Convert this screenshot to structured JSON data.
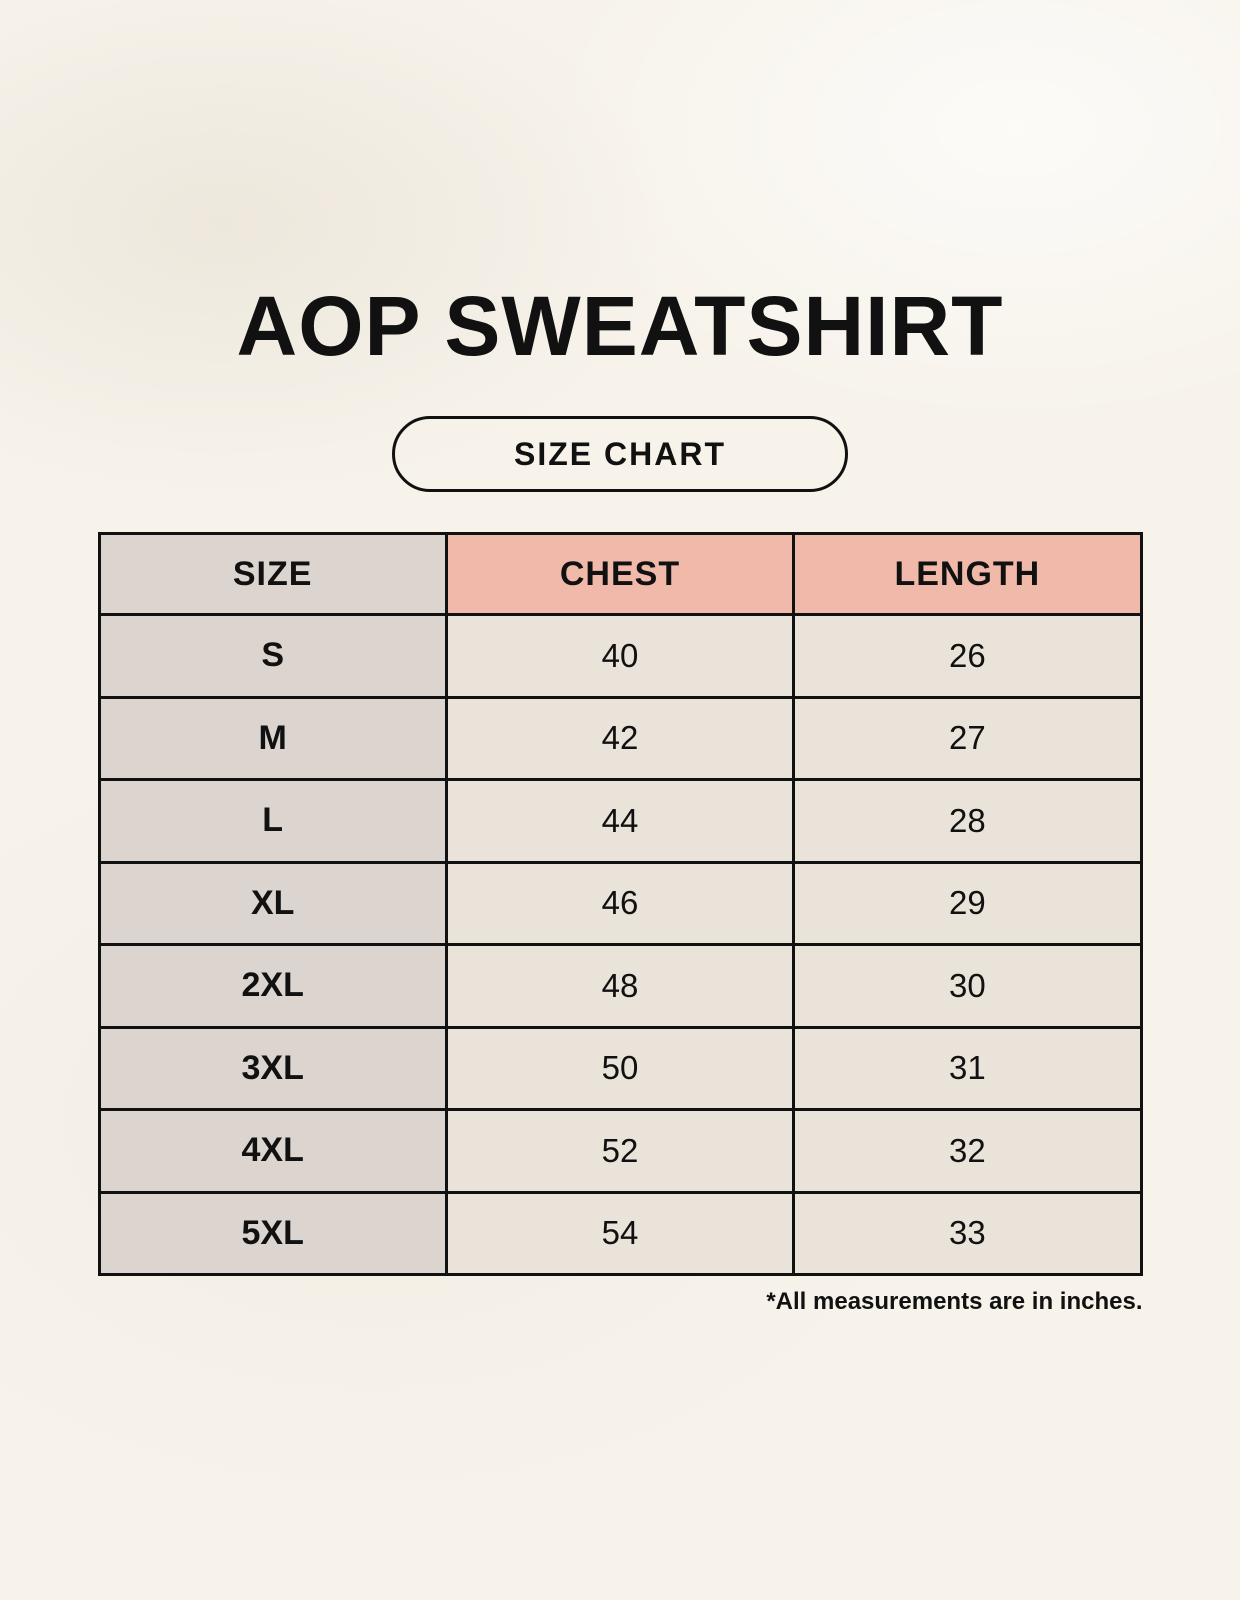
{
  "page": {
    "title": "AOP SWEATSHIRT",
    "badge_label": "SIZE CHART",
    "footnote": "*All measurements are in inches."
  },
  "colors": {
    "background": "#F7F3EB",
    "size_column": "#DCD5CF",
    "header_accent": "#F0B9A9",
    "cell_cream": "#EAE3D9",
    "border": "#111111",
    "text": "#111111"
  },
  "chart_data": {
    "type": "table",
    "title": "AOP SWEATSHIRT",
    "subtitle": "SIZE CHART",
    "columns": [
      "SIZE",
      "CHEST",
      "LENGTH"
    ],
    "rows": [
      [
        "S",
        40,
        26
      ],
      [
        "M",
        42,
        27
      ],
      [
        "L",
        44,
        28
      ],
      [
        "XL",
        46,
        29
      ],
      [
        "2XL",
        48,
        30
      ],
      [
        "3XL",
        50,
        31
      ],
      [
        "4XL",
        52,
        32
      ],
      [
        "5XL",
        54,
        33
      ]
    ],
    "units": "inches",
    "note": "*All measurements are in inches."
  }
}
